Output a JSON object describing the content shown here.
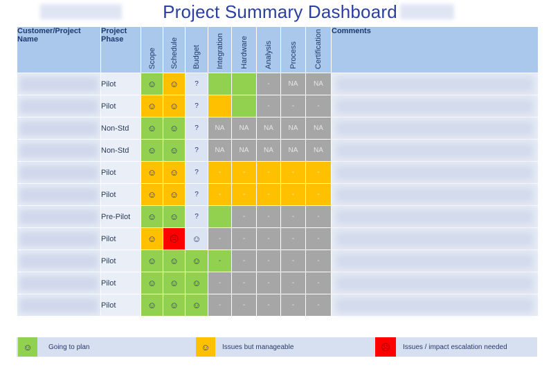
{
  "title": "Project Summary Dashboard",
  "headers": {
    "name": "Customer/Project Name",
    "phase": "Project Phase",
    "metrics": [
      "Scope",
      "Schedule",
      "Budget",
      "Integration",
      "Hardware",
      "Analysis",
      "Process",
      "Certification"
    ],
    "comments": "Comments"
  },
  "colors": {
    "green": "#92d050",
    "yellow": "#ffc000",
    "red": "#ff0000",
    "gray": "#a6a6a6",
    "blue": "#dbe4f2",
    "header": "#a9c8ec"
  },
  "rows": [
    {
      "phase": "Pilot",
      "cells": [
        {
          "c": "g",
          "v": "☺"
        },
        {
          "c": "y",
          "v": "☺"
        },
        {
          "c": "bl",
          "v": "?"
        },
        {
          "c": "g",
          "v": ""
        },
        {
          "c": "g",
          "v": ""
        },
        {
          "c": "gr",
          "v": "-"
        },
        {
          "c": "gr",
          "v": "NA"
        },
        {
          "c": "gr",
          "v": "NA"
        }
      ]
    },
    {
      "phase": "Pilot",
      "cells": [
        {
          "c": "y",
          "v": "☺"
        },
        {
          "c": "y",
          "v": "☺"
        },
        {
          "c": "bl",
          "v": "?"
        },
        {
          "c": "y",
          "v": ""
        },
        {
          "c": "g",
          "v": ""
        },
        {
          "c": "gr",
          "v": "-"
        },
        {
          "c": "gr",
          "v": "-"
        },
        {
          "c": "gr",
          "v": "-"
        }
      ]
    },
    {
      "phase": "Non-Std",
      "cells": [
        {
          "c": "g",
          "v": "☺"
        },
        {
          "c": "g",
          "v": "☺"
        },
        {
          "c": "bl",
          "v": "?"
        },
        {
          "c": "gr",
          "v": "NA"
        },
        {
          "c": "gr",
          "v": "NA"
        },
        {
          "c": "gr",
          "v": "NA"
        },
        {
          "c": "gr",
          "v": "NA"
        },
        {
          "c": "gr",
          "v": "NA"
        }
      ]
    },
    {
      "phase": "Non-Std",
      "cells": [
        {
          "c": "g",
          "v": "☺"
        },
        {
          "c": "g",
          "v": "☺"
        },
        {
          "c": "bl",
          "v": "?"
        },
        {
          "c": "gr",
          "v": "NA"
        },
        {
          "c": "gr",
          "v": "NA"
        },
        {
          "c": "gr",
          "v": "NA"
        },
        {
          "c": "gr",
          "v": "NA"
        },
        {
          "c": "gr",
          "v": "NA"
        }
      ]
    },
    {
      "phase": "Pilot",
      "cells": [
        {
          "c": "y",
          "v": "☺"
        },
        {
          "c": "y",
          "v": "☺"
        },
        {
          "c": "bl",
          "v": "?"
        },
        {
          "c": "y",
          "v": "-"
        },
        {
          "c": "y",
          "v": "-"
        },
        {
          "c": "y",
          "v": "-"
        },
        {
          "c": "y",
          "v": "-"
        },
        {
          "c": "y",
          "v": "-"
        }
      ]
    },
    {
      "phase": "Pilot",
      "cells": [
        {
          "c": "y",
          "v": "☺"
        },
        {
          "c": "y",
          "v": "☺"
        },
        {
          "c": "bl",
          "v": "?"
        },
        {
          "c": "y",
          "v": "-"
        },
        {
          "c": "y",
          "v": "-"
        },
        {
          "c": "y",
          "v": "-"
        },
        {
          "c": "y",
          "v": "-"
        },
        {
          "c": "y",
          "v": "-"
        }
      ]
    },
    {
      "phase": "Pre-Pilot",
      "cells": [
        {
          "c": "g",
          "v": "☺"
        },
        {
          "c": "g",
          "v": "☺"
        },
        {
          "c": "bl",
          "v": "?"
        },
        {
          "c": "g",
          "v": ""
        },
        {
          "c": "gr",
          "v": "-"
        },
        {
          "c": "gr",
          "v": "-"
        },
        {
          "c": "gr",
          "v": "-"
        },
        {
          "c": "gr",
          "v": "-"
        }
      ]
    },
    {
      "phase": "Pilot",
      "cells": [
        {
          "c": "y",
          "v": "☺"
        },
        {
          "c": "r",
          "v": "☹"
        },
        {
          "c": "bl",
          "v": "☺"
        },
        {
          "c": "gr",
          "v": "-"
        },
        {
          "c": "gr",
          "v": "-"
        },
        {
          "c": "gr",
          "v": "-"
        },
        {
          "c": "gr",
          "v": "-"
        },
        {
          "c": "gr",
          "v": "-"
        }
      ]
    },
    {
      "phase": "Pilot",
      "cells": [
        {
          "c": "g",
          "v": "☺"
        },
        {
          "c": "g",
          "v": "☺"
        },
        {
          "c": "g",
          "v": "☺"
        },
        {
          "c": "g",
          "v": "-"
        },
        {
          "c": "gr",
          "v": "-"
        },
        {
          "c": "gr",
          "v": "-"
        },
        {
          "c": "gr",
          "v": "-"
        },
        {
          "c": "gr",
          "v": "-"
        }
      ]
    },
    {
      "phase": "Pilot",
      "cells": [
        {
          "c": "g",
          "v": "☺"
        },
        {
          "c": "g",
          "v": "☺"
        },
        {
          "c": "g",
          "v": "☺"
        },
        {
          "c": "gr",
          "v": "-"
        },
        {
          "c": "gr",
          "v": "-"
        },
        {
          "c": "gr",
          "v": "-"
        },
        {
          "c": "gr",
          "v": "-"
        },
        {
          "c": "gr",
          "v": "-"
        }
      ]
    },
    {
      "phase": "Pilot",
      "cells": [
        {
          "c": "g",
          "v": "☺"
        },
        {
          "c": "g",
          "v": "☺"
        },
        {
          "c": "g",
          "v": "☺"
        },
        {
          "c": "gr",
          "v": "-"
        },
        {
          "c": "gr",
          "v": "-"
        },
        {
          "c": "gr",
          "v": "-"
        },
        {
          "c": "gr",
          "v": "-"
        },
        {
          "c": "gr",
          "v": "-"
        }
      ]
    }
  ],
  "legend": [
    {
      "color": "g",
      "icon": "smiley-face-icon",
      "glyph": "☺",
      "label": "Going to plan"
    },
    {
      "color": "y",
      "icon": "neutral-face-icon",
      "glyph": "☺",
      "label": "Issues but manageable"
    },
    {
      "color": "r",
      "icon": "frown-face-icon",
      "glyph": "☹",
      "label": "Issues / impact escalation needed"
    }
  ]
}
